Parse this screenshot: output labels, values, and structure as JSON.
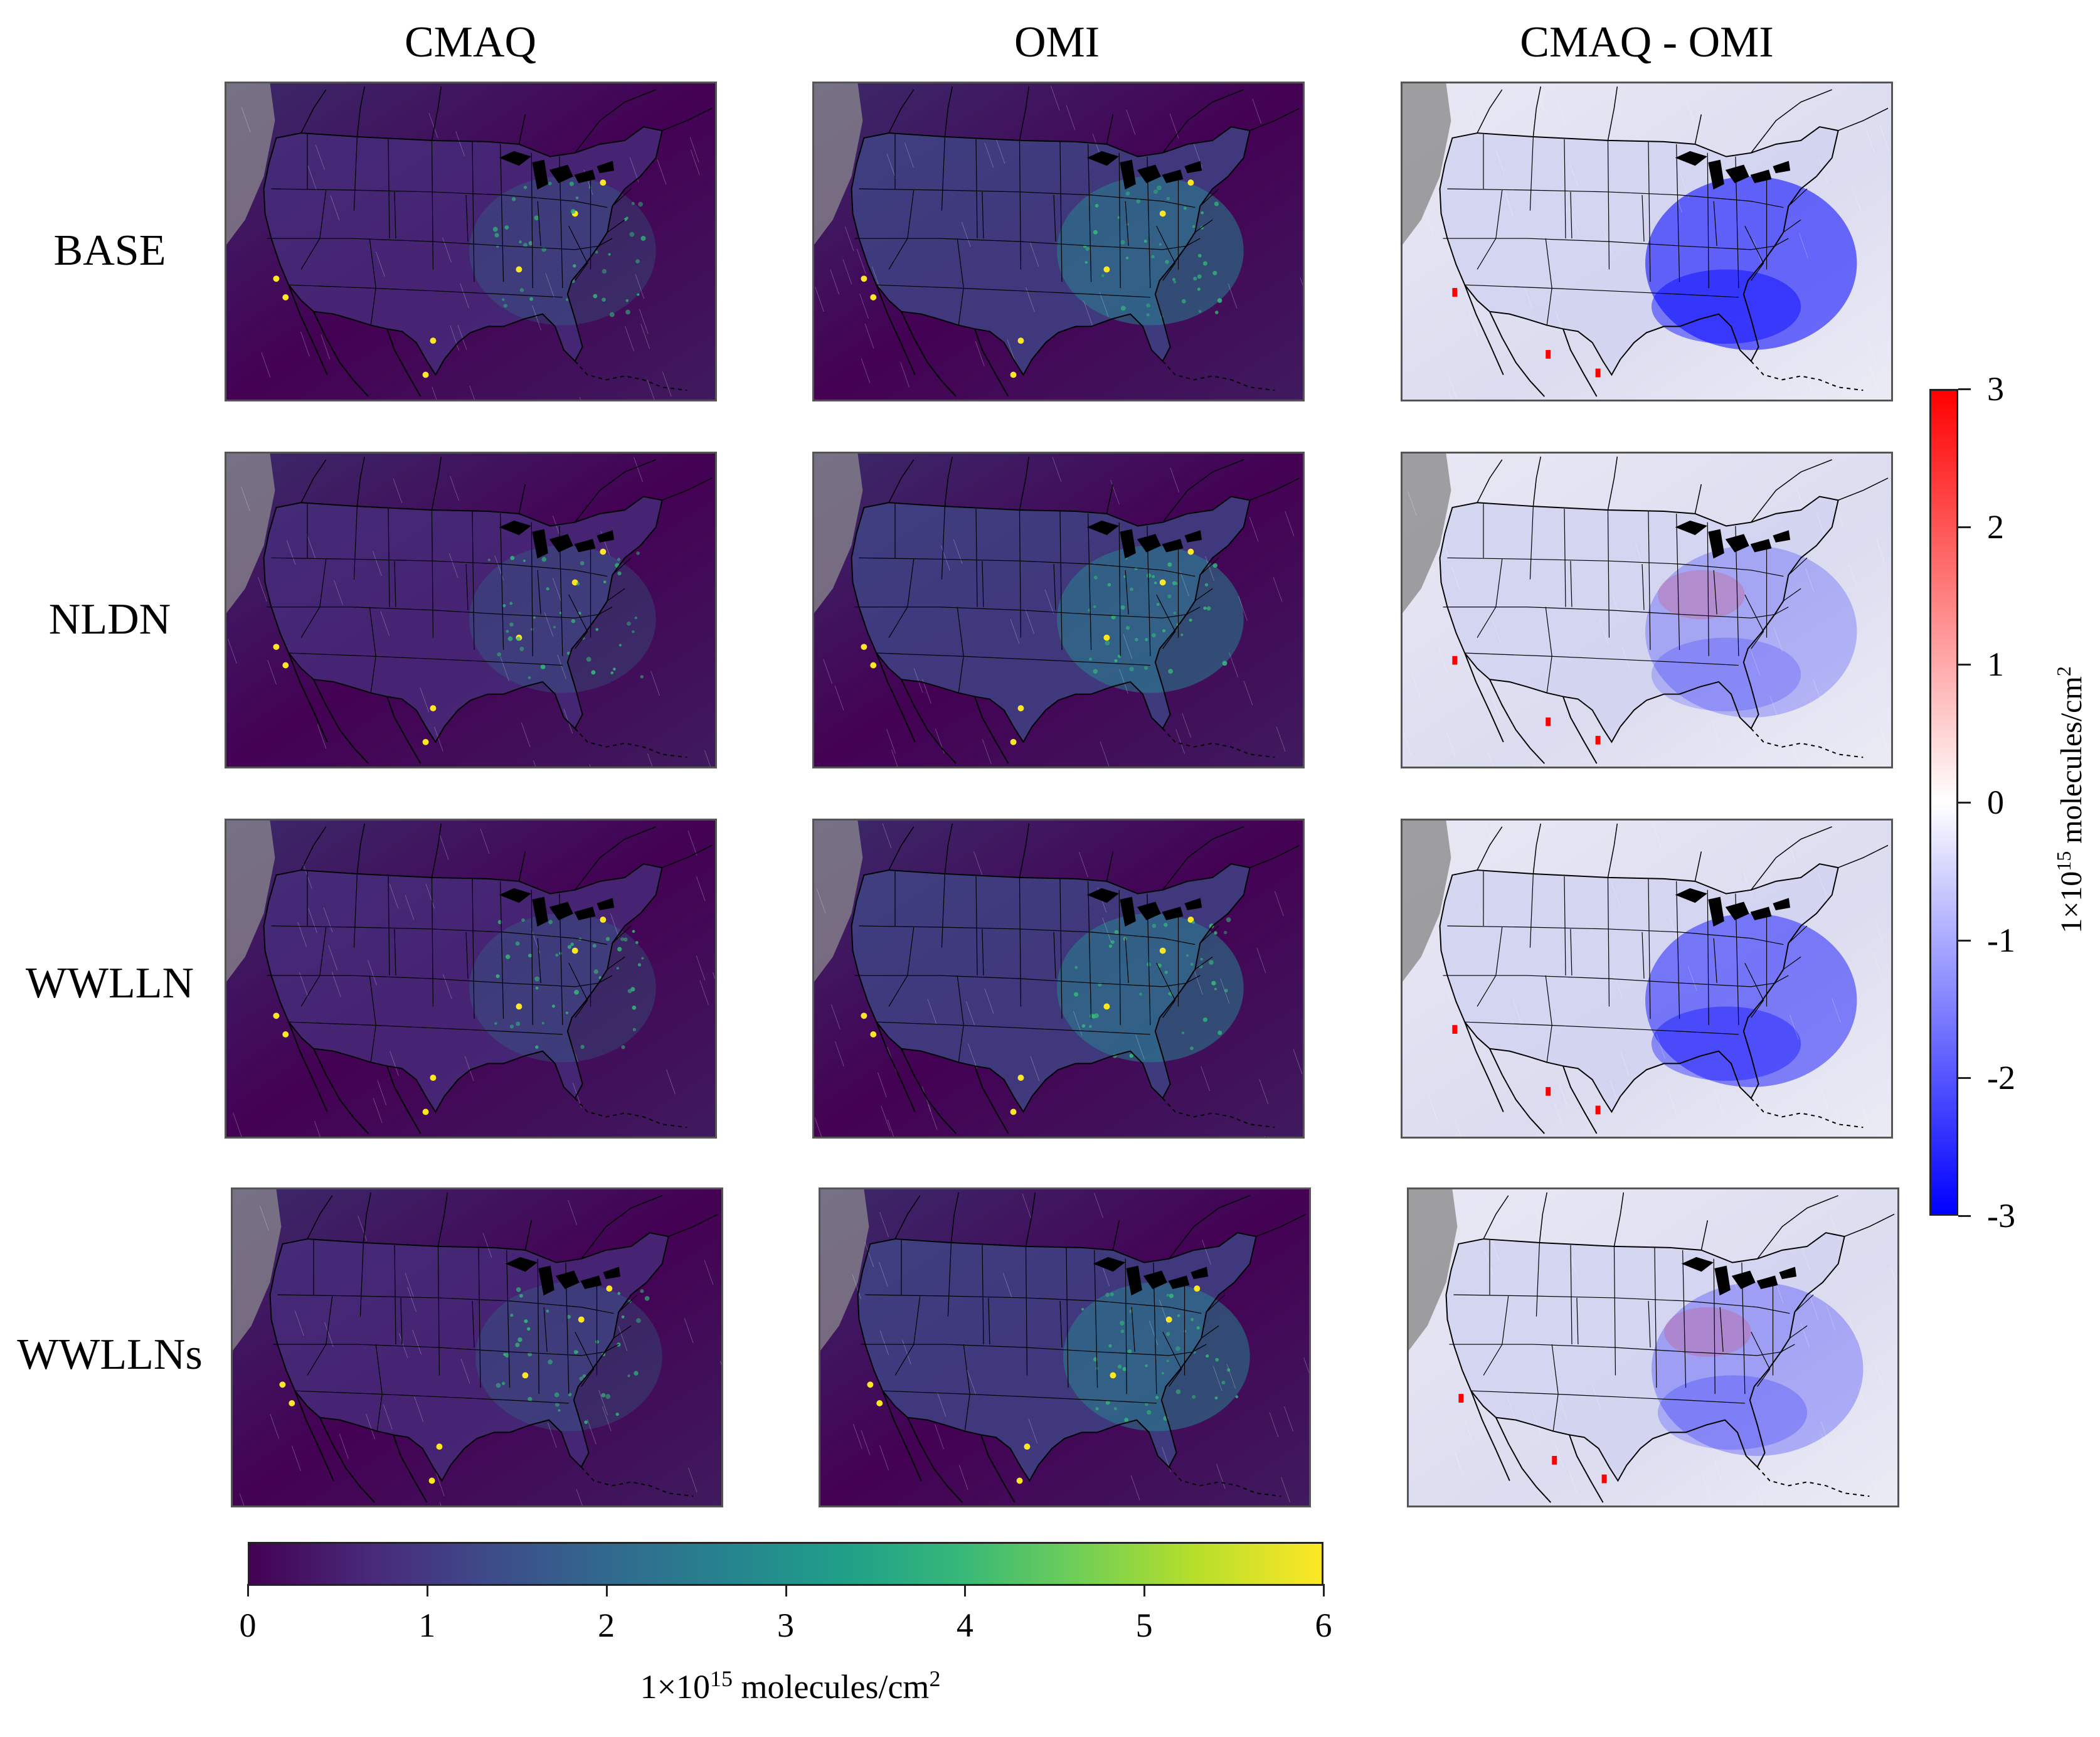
{
  "columns": [
    "CMAQ",
    "OMI",
    "CMAQ - OMI"
  ],
  "rows": [
    "BASE",
    "NLDN",
    "WWLLN",
    "WWLLNs"
  ],
  "colorbar_main": {
    "ticks": [
      "0",
      "1",
      "2",
      "3",
      "4",
      "5",
      "6"
    ],
    "min": 0,
    "max": 6,
    "units_prefix": "1×10",
    "units_exp": "15",
    "units_suffix": " molecules/cm",
    "units_sq": "2",
    "colormap": "viridis"
  },
  "colorbar_diff": {
    "ticks": [
      "3",
      "2",
      "1",
      "0",
      "-1",
      "-2",
      "-3"
    ],
    "min": -3,
    "max": 3,
    "units_prefix": "1×10",
    "units_exp": "15",
    "units_suffix": " molecules/cm",
    "units_sq": "2",
    "colormap": "blue-white-red"
  },
  "colors": {
    "viridis_low": "#440154",
    "viridis_mid": "#3e4a89",
    "viridis_high": "#fde725",
    "diff_negative": "#0000ff",
    "diff_positive": "#ff0000",
    "missing": "#909090"
  }
}
